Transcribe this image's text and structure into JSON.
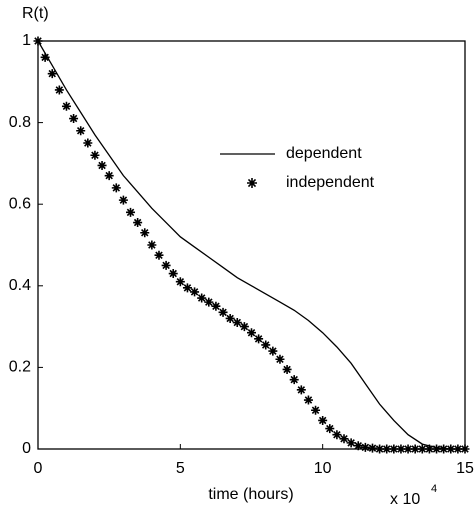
{
  "chart_data": {
    "type": "line",
    "y_label": "R(t)",
    "x_label": "time (hours)",
    "x_multiplier": {
      "base": "x 10",
      "exponent": "4"
    },
    "xlim": [
      0,
      15
    ],
    "xticks": [
      0,
      5,
      10,
      15
    ],
    "ylim": [
      0,
      1
    ],
    "yticks": [
      0,
      0.2,
      0.4,
      0.6,
      0.8,
      1
    ],
    "legend": "upper right",
    "series": [
      {
        "name": "dependent",
        "color": "#000000",
        "marker": "none",
        "x": [
          0,
          0.5,
          1,
          1.5,
          2,
          2.5,
          3,
          3.5,
          4,
          4.5,
          5,
          5.5,
          6,
          6.5,
          7,
          7.5,
          8,
          8.5,
          9,
          9.5,
          10,
          10.5,
          11,
          11.5,
          12,
          12.5,
          13,
          13.5,
          14,
          14.5,
          15
        ],
        "values": [
          1,
          0.94,
          0.88,
          0.825,
          0.77,
          0.72,
          0.67,
          0.63,
          0.59,
          0.555,
          0.52,
          0.495,
          0.47,
          0.445,
          0.42,
          0.4,
          0.38,
          0.36,
          0.34,
          0.315,
          0.285,
          0.25,
          0.21,
          0.16,
          0.11,
          0.07,
          0.035,
          0.012,
          0.003,
          0,
          0
        ]
      },
      {
        "name": "independent",
        "color": "#000000",
        "marker": "star",
        "x": [
          0,
          0.25,
          0.5,
          0.75,
          1,
          1.25,
          1.5,
          1.75,
          2,
          2.25,
          2.5,
          2.75,
          3,
          3.25,
          3.5,
          3.75,
          4,
          4.25,
          4.5,
          4.75,
          5,
          5.25,
          5.5,
          5.75,
          6,
          6.25,
          6.5,
          6.75,
          7,
          7.25,
          7.5,
          7.75,
          8,
          8.25,
          8.5,
          8.75,
          9,
          9.25,
          9.5,
          9.75,
          10,
          10.25,
          10.5,
          10.75,
          11,
          11.25,
          11.5,
          11.75,
          12,
          12.25,
          12.5,
          12.75,
          13,
          13.25,
          13.5,
          13.75,
          14,
          14.25,
          14.5,
          14.75,
          15
        ],
        "values": [
          1,
          0.96,
          0.92,
          0.88,
          0.84,
          0.81,
          0.78,
          0.75,
          0.72,
          0.695,
          0.67,
          0.64,
          0.61,
          0.58,
          0.555,
          0.53,
          0.5,
          0.475,
          0.45,
          0.43,
          0.41,
          0.395,
          0.385,
          0.37,
          0.36,
          0.35,
          0.335,
          0.32,
          0.31,
          0.3,
          0.285,
          0.27,
          0.255,
          0.24,
          0.22,
          0.195,
          0.17,
          0.145,
          0.12,
          0.095,
          0.07,
          0.05,
          0.035,
          0.025,
          0.015,
          0.008,
          0.004,
          0.002,
          0,
          0,
          0,
          0,
          0,
          0,
          0,
          0,
          0,
          0,
          0,
          0,
          0
        ]
      }
    ]
  }
}
